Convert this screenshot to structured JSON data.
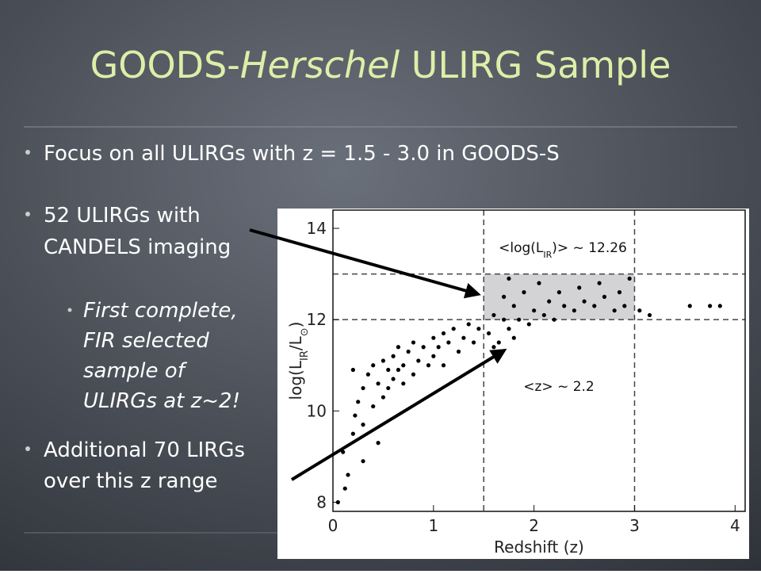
{
  "slide": {
    "title_parts": [
      "GOODS-",
      "Herschel",
      " ULIRG Sample"
    ],
    "bullet_1": "Focus on all ULIRGs with z = 1.5 - 3.0 in GOODS-S",
    "bullet_2": [
      "52 ULIRGs with",
      "CANDELS imaging"
    ],
    "sub_bullet": [
      "First complete,",
      "FIR selected",
      "sample of",
      "ULIRGs at z~2!"
    ],
    "bullet_3": [
      "Additional 70 LIRGs",
      "over this z range"
    ]
  },
  "chart_data": {
    "type": "scatter",
    "x_label": "Redshift  (z)",
    "y_label_parts": [
      "log(L",
      "IR",
      "/L",
      "⊙",
      ")"
    ],
    "annotation_1_parts": [
      "<log(L",
      "IR",
      ")> ~ 12.26"
    ],
    "annotation_2": "<z> ~ 2.2",
    "color": "#000000",
    "xlim": [
      0,
      4.1
    ],
    "ylim": [
      7.8,
      14.4
    ],
    "xticks": [
      0,
      1,
      2,
      3,
      4
    ],
    "yticks": [
      8,
      10,
      12,
      14
    ],
    "hlines": [
      12,
      13
    ],
    "vlines": [
      1.5,
      3
    ],
    "shade": {
      "x": [
        1.5,
        3
      ],
      "y": [
        12,
        13
      ],
      "color": "#d3d3d6"
    },
    "x": [
      0.12,
      0.15,
      0.1,
      0.2,
      0.22,
      0.25,
      0.3,
      0.3,
      0.35,
      0.4,
      0.4,
      0.45,
      0.5,
      0.5,
      0.55,
      0.55,
      0.6,
      0.6,
      0.65,
      0.65,
      0.7,
      0.7,
      0.75,
      0.8,
      0.8,
      0.85,
      0.9,
      0.95,
      1.0,
      1.0,
      1.05,
      1.1,
      1.1,
      1.15,
      1.2,
      1.25,
      1.3,
      1.35,
      1.4,
      1.45,
      0.3,
      0.05,
      0.45,
      0.2,
      1.55,
      1.6,
      1.65,
      1.7,
      1.7,
      1.75,
      1.8,
      1.8,
      1.85,
      1.9,
      1.95,
      2.0,
      2.05,
      2.1,
      2.15,
      2.2,
      2.25,
      2.3,
      2.4,
      2.45,
      2.5,
      2.6,
      2.65,
      2.7,
      2.8,
      2.85,
      2.9,
      2.95,
      1.75,
      1.6,
      3.05,
      3.15,
      3.55,
      3.75,
      3.85
    ],
    "y": [
      8.3,
      8.6,
      9.1,
      9.5,
      9.9,
      10.2,
      9.7,
      10.5,
      10.8,
      10.1,
      11.0,
      10.6,
      10.3,
      11.1,
      10.9,
      10.5,
      11.2,
      10.7,
      10.9,
      11.4,
      11.0,
      10.6,
      11.3,
      10.8,
      11.5,
      11.1,
      11.4,
      11.0,
      11.6,
      11.2,
      11.4,
      11.7,
      11.0,
      11.5,
      11.8,
      11.3,
      11.6,
      11.9,
      11.5,
      11.8,
      8.9,
      8.0,
      9.3,
      10.9,
      11.7,
      12.1,
      11.5,
      12.0,
      12.5,
      11.8,
      12.3,
      11.6,
      12.0,
      12.6,
      11.9,
      12.2,
      12.8,
      12.1,
      12.4,
      12.0,
      12.6,
      12.3,
      12.2,
      12.7,
      12.4,
      12.3,
      12.8,
      12.5,
      12.2,
      12.6,
      12.3,
      12.9,
      12.9,
      11.4,
      12.2,
      12.1,
      12.3,
      12.3,
      12.3
    ]
  }
}
